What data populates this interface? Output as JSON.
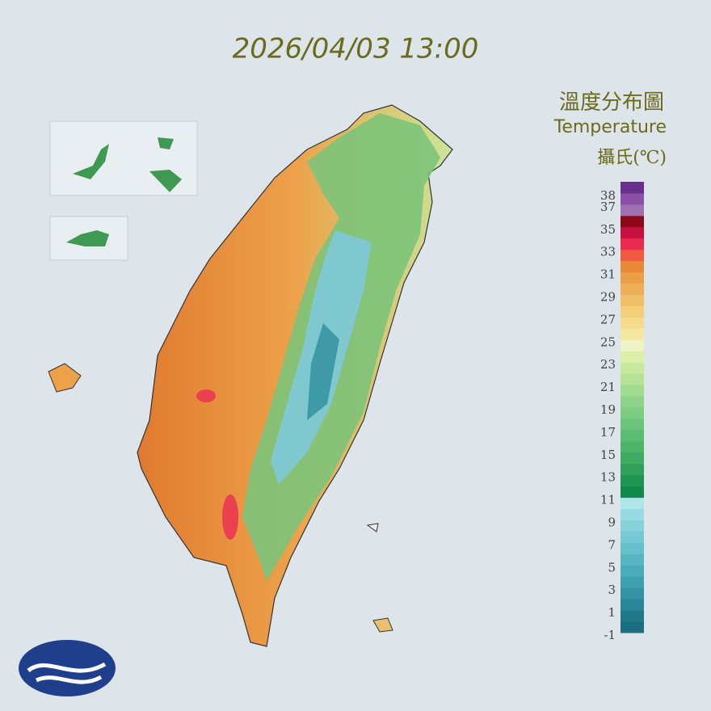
{
  "timestamp": "2026/04/03 13:00",
  "legend": {
    "title": "溫度分布圖",
    "subtitle": "Temperature",
    "unit": "攝氏(℃)",
    "labels": [
      38,
      37,
      35,
      33,
      31,
      29,
      27,
      25,
      23,
      21,
      19,
      17,
      15,
      13,
      11,
      9,
      7,
      5,
      3,
      1,
      -1
    ],
    "colors": [
      "#1a6e80",
      "#217a8c",
      "#2a8799",
      "#3393a5",
      "#3fa0b0",
      "#4aabbb",
      "#58b6c4",
      "#66c0cc",
      "#76c9d4",
      "#86d2db",
      "#98dbe2",
      "#aee6ea",
      "#0f8a4a",
      "#1e9652",
      "#2ea05a",
      "#3eaa62",
      "#4db46a",
      "#5cbc72",
      "#6cc47a",
      "#7ccc82",
      "#8ed48a",
      "#a0dc90",
      "#b4e398",
      "#c8ea9e",
      "#dcefa8",
      "#eef3c4",
      "#f6e8a0",
      "#f5dc8c",
      "#f3cf7a",
      "#f0c068",
      "#eeb056",
      "#eb9f46",
      "#e88a38",
      "#f05a40",
      "#ea2a4c",
      "#c81040",
      "#8c0a18",
      "#a070b0",
      "#8a50a8",
      "#6a2e8c"
    ]
  }
}
